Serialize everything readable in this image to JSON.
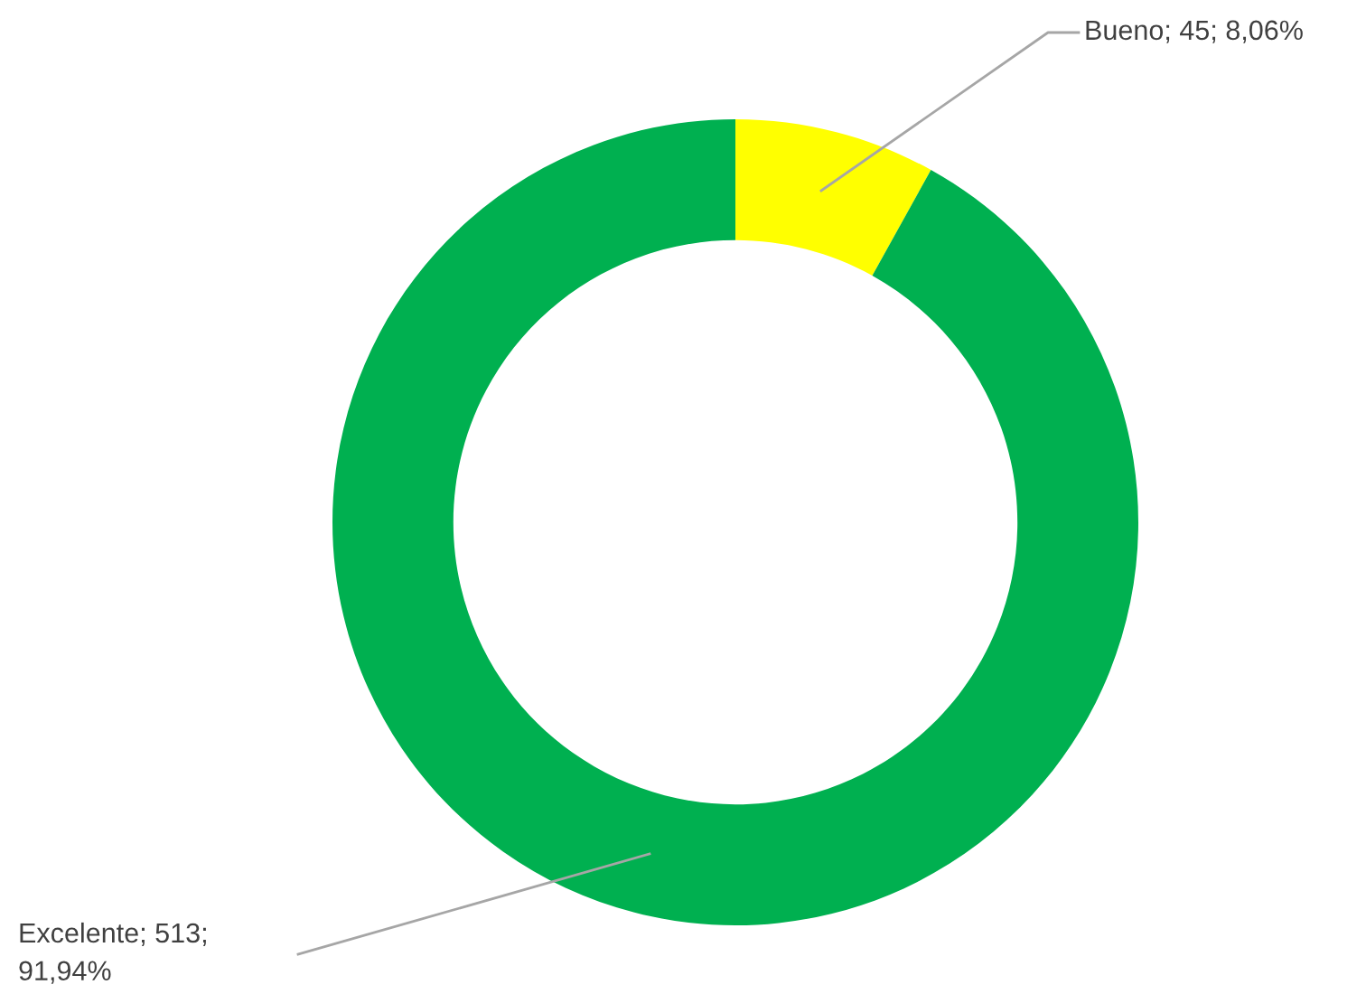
{
  "chart_data": {
    "type": "donut",
    "categories": [
      "Bueno",
      "Excelente"
    ],
    "values": [
      45,
      513
    ],
    "colors": [
      "#ffff00",
      "#00b050"
    ],
    "value_labels": [
      "45; 8,06%",
      "513; 91,94%"
    ],
    "legend": false
  }
}
